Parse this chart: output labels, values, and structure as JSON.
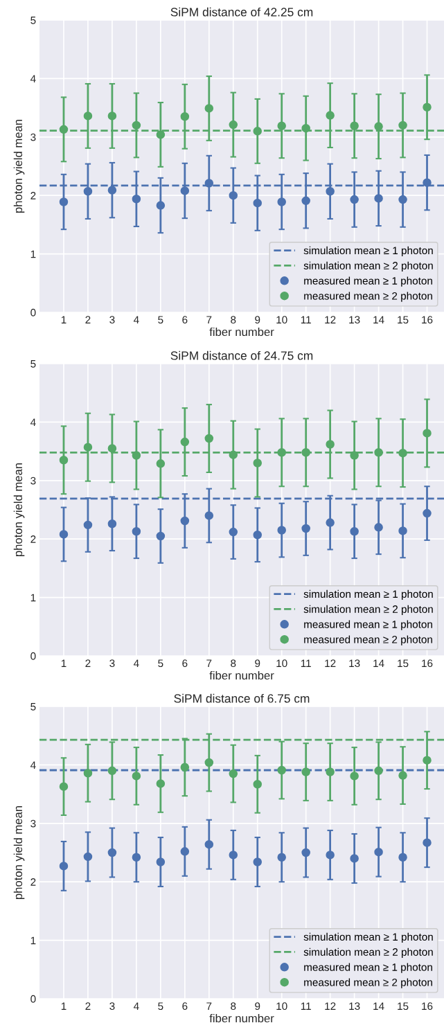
{
  "chart_data": [
    {
      "type": "scatter",
      "title": "SiPM distance of 42.25 cm",
      "xlabel": "fiber number",
      "ylabel": "photon yield mean",
      "x": [
        1,
        2,
        3,
        4,
        5,
        6,
        7,
        8,
        9,
        10,
        11,
        12,
        13,
        14,
        15,
        16
      ],
      "xlim": [
        0,
        16.7
      ],
      "xticks": [
        1,
        2,
        3,
        4,
        5,
        6,
        7,
        8,
        9,
        10,
        11,
        12,
        13,
        14,
        15,
        16
      ],
      "ylim": [
        0,
        5
      ],
      "yticks": [
        0,
        1,
        2,
        3,
        4,
        5
      ],
      "grid": true,
      "legend": "bottom right",
      "marker": "circle",
      "series": [
        {
          "name": "measured mean ≥ 1 photon",
          "color": "#4c72b0",
          "values": [
            1.89,
            2.07,
            2.09,
            1.94,
            1.83,
            2.08,
            2.21,
            2.0,
            1.87,
            1.89,
            1.91,
            2.07,
            1.93,
            1.95,
            1.93,
            2.22
          ],
          "errors": [
            0.47,
            0.47,
            0.47,
            0.47,
            0.47,
            0.47,
            0.47,
            0.47,
            0.47,
            0.47,
            0.47,
            0.47,
            0.47,
            0.47,
            0.47,
            0.47
          ]
        },
        {
          "name": "measured mean ≥ 2 photon",
          "color": "#55a868",
          "values": [
            3.13,
            3.36,
            3.36,
            3.2,
            3.04,
            3.35,
            3.49,
            3.21,
            3.1,
            3.19,
            3.15,
            3.37,
            3.19,
            3.18,
            3.2,
            3.51
          ],
          "errors": [
            0.55,
            0.55,
            0.55,
            0.55,
            0.55,
            0.55,
            0.55,
            0.55,
            0.55,
            0.55,
            0.55,
            0.55,
            0.55,
            0.55,
            0.55,
            0.55
          ]
        }
      ],
      "ref_lines": [
        {
          "axis": "y",
          "value": 2.17,
          "label": "simulation mean ≥ 1 photon",
          "color": "#4c72b0",
          "line_style": "dashed"
        },
        {
          "axis": "y",
          "value": 3.11,
          "label": "simulation mean ≥ 2 photon",
          "color": "#55a868",
          "line_style": "dashed"
        }
      ]
    },
    {
      "type": "scatter",
      "title": "SiPM distance of 24.75 cm",
      "xlabel": "fiber number",
      "ylabel": "photon yield mean",
      "x": [
        1,
        2,
        3,
        4,
        5,
        6,
        7,
        8,
        9,
        10,
        11,
        12,
        13,
        14,
        15,
        16
      ],
      "xlim": [
        0,
        16.7
      ],
      "xticks": [
        1,
        2,
        3,
        4,
        5,
        6,
        7,
        8,
        9,
        10,
        11,
        12,
        13,
        14,
        15,
        16
      ],
      "ylim": [
        0,
        5
      ],
      "yticks": [
        0,
        1,
        2,
        3,
        4,
        5
      ],
      "grid": true,
      "legend": "bottom right",
      "marker": "circle",
      "series": [
        {
          "name": "measured mean ≥ 1 photon",
          "color": "#4c72b0",
          "values": [
            2.08,
            2.24,
            2.26,
            2.13,
            2.05,
            2.31,
            2.4,
            2.12,
            2.07,
            2.15,
            2.18,
            2.28,
            2.13,
            2.2,
            2.14,
            2.44
          ],
          "errors": [
            0.46,
            0.46,
            0.46,
            0.46,
            0.46,
            0.46,
            0.46,
            0.46,
            0.46,
            0.46,
            0.46,
            0.46,
            0.46,
            0.46,
            0.46,
            0.46
          ]
        },
        {
          "name": "measured mean ≥ 2 photon",
          "color": "#55a868",
          "values": [
            3.35,
            3.57,
            3.55,
            3.43,
            3.29,
            3.66,
            3.72,
            3.44,
            3.3,
            3.48,
            3.48,
            3.62,
            3.43,
            3.48,
            3.47,
            3.81
          ],
          "errors": [
            0.58,
            0.58,
            0.58,
            0.58,
            0.58,
            0.58,
            0.58,
            0.58,
            0.58,
            0.58,
            0.58,
            0.58,
            0.58,
            0.58,
            0.58,
            0.58
          ]
        }
      ],
      "ref_lines": [
        {
          "axis": "y",
          "value": 2.69,
          "label": "simulation mean ≥ 1 photon",
          "color": "#4c72b0",
          "line_style": "dashed"
        },
        {
          "axis": "y",
          "value": 3.48,
          "label": "simulation mean ≥ 2 photon",
          "color": "#55a868",
          "line_style": "dashed"
        }
      ]
    },
    {
      "type": "scatter",
      "title": "SiPM distance of 6.75 cm",
      "xlabel": "fiber number",
      "ylabel": "photon yield mean",
      "x": [
        1,
        2,
        3,
        4,
        5,
        6,
        7,
        8,
        9,
        10,
        11,
        12,
        13,
        14,
        15,
        16
      ],
      "xlim": [
        0,
        16.7
      ],
      "xticks": [
        1,
        2,
        3,
        4,
        5,
        6,
        7,
        8,
        9,
        10,
        11,
        12,
        13,
        14,
        15,
        16
      ],
      "ylim": [
        0,
        5
      ],
      "yticks": [
        0,
        1,
        2,
        3,
        4,
        5
      ],
      "grid": true,
      "legend": "bottom right",
      "marker": "circle",
      "series": [
        {
          "name": "measured mean ≥ 1 photon",
          "color": "#4c72b0",
          "values": [
            2.27,
            2.43,
            2.5,
            2.42,
            2.34,
            2.52,
            2.64,
            2.46,
            2.34,
            2.42,
            2.5,
            2.46,
            2.4,
            2.51,
            2.42,
            2.67
          ],
          "errors": [
            0.42,
            0.42,
            0.42,
            0.42,
            0.42,
            0.42,
            0.42,
            0.42,
            0.42,
            0.42,
            0.42,
            0.42,
            0.42,
            0.42,
            0.42,
            0.42
          ]
        },
        {
          "name": "measured mean ≥ 2 photon",
          "color": "#55a868",
          "values": [
            3.63,
            3.86,
            3.9,
            3.81,
            3.68,
            3.96,
            4.04,
            3.85,
            3.67,
            3.91,
            3.88,
            3.88,
            3.81,
            3.9,
            3.82,
            4.08
          ],
          "errors": [
            0.49,
            0.49,
            0.49,
            0.49,
            0.49,
            0.49,
            0.49,
            0.49,
            0.49,
            0.49,
            0.49,
            0.49,
            0.49,
            0.49,
            0.49,
            0.49
          ]
        }
      ],
      "ref_lines": [
        {
          "axis": "y",
          "value": 3.91,
          "label": "simulation mean ≥ 1 photon",
          "color": "#4c72b0",
          "line_style": "dashed"
        },
        {
          "axis": "y",
          "value": 4.43,
          "label": "simulation mean ≥ 2 photon",
          "color": "#55a868",
          "line_style": "dashed"
        }
      ]
    }
  ]
}
